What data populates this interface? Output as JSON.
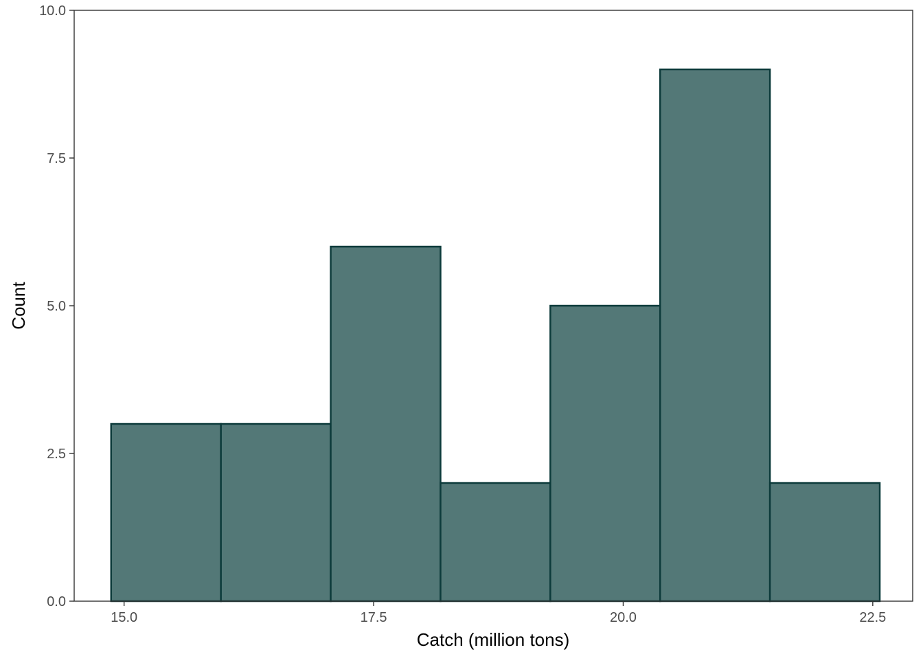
{
  "chart_data": {
    "type": "bar",
    "subtype": "histogram",
    "title": "",
    "xlabel": "Catch (million tons)",
    "ylabel": "Count",
    "bins": [
      {
        "x0": 14.87,
        "x1": 15.97,
        "count": 3
      },
      {
        "x0": 15.97,
        "x1": 17.07,
        "count": 3
      },
      {
        "x0": 17.07,
        "x1": 18.17,
        "count": 6
      },
      {
        "x0": 18.17,
        "x1": 19.27,
        "count": 2
      },
      {
        "x0": 19.27,
        "x1": 20.37,
        "count": 5
      },
      {
        "x0": 20.37,
        "x1": 21.47,
        "count": 9
      },
      {
        "x0": 21.47,
        "x1": 22.57,
        "count": 2
      }
    ],
    "xlim": [
      14.5,
      22.9
    ],
    "ylim": [
      0,
      10
    ],
    "xticks": [
      15.0,
      17.5,
      20.0,
      22.5
    ],
    "xtick_labels": [
      "15.0",
      "17.5",
      "20.0",
      "22.5"
    ],
    "yticks": [
      0,
      2.5,
      5,
      7.5,
      10
    ],
    "ytick_labels": [
      "0.0",
      "2.5",
      "5.0",
      "7.5",
      "10.0"
    ],
    "grid": false,
    "legend": "none",
    "colors": {
      "bar_fill": "#537877",
      "bar_stroke": "#0d3b3b",
      "panel_border": "#333333",
      "tick_label": "#4d4d4d",
      "axis_title": "#000000"
    }
  }
}
